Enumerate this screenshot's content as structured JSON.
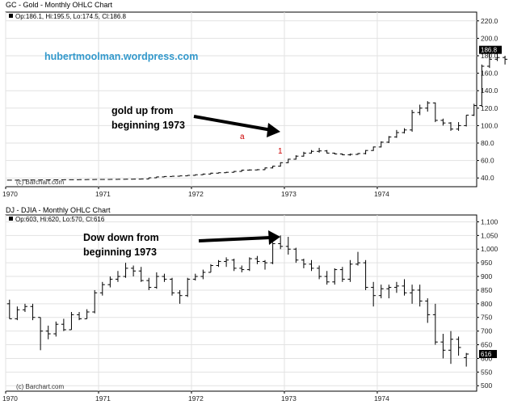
{
  "colors": {
    "bar": "#000000",
    "grid": "#e2e2e2",
    "url": "#3399cc",
    "marker": "#cc0000",
    "last_box": "#000000"
  },
  "chart_data": [
    {
      "type": "ohlc",
      "title": "GC - Gold - Monthly OHLC Chart",
      "legend": "Op:186.1, Hi:195.5, Lo:174.5, Cl:186.8",
      "last_value_label": "186.8",
      "credit": "(c) Barchart.com",
      "watermark": "hubertmoolman.wordpress.com",
      "annotation": {
        "text_lines": [
          "gold up from",
          "beginning 1973"
        ]
      },
      "markers": [
        {
          "text": "a",
          "x": 1972.8
        },
        {
          "text": "1",
          "x": 1972.97
        }
      ],
      "ylim": [
        30,
        230
      ],
      "yticks": [
        "40.0",
        "60.0",
        "80.0",
        "100.0",
        "120.0",
        "140.0",
        "160.0",
        "180.0",
        "200.0",
        "220.0"
      ],
      "ytick_values": [
        40,
        60,
        80,
        100,
        120,
        140,
        160,
        180,
        200,
        220
      ],
      "xlim": [
        1970,
        1975.07
      ],
      "xticks": [
        "1970",
        "1971",
        "1972",
        "1973",
        "1974"
      ],
      "xtick_values": [
        1970,
        1971,
        1972,
        1973,
        1974
      ],
      "grid": true,
      "start": 1970,
      "bars": [
        [
          37.5,
          37.6,
          37.4,
          37.5
        ],
        [
          37.5,
          37.6,
          37.4,
          37.6
        ],
        [
          37.6,
          37.8,
          37.5,
          37.7
        ],
        [
          37.7,
          37.8,
          37.6,
          37.7
        ],
        [
          37.7,
          37.9,
          37.6,
          37.8
        ],
        [
          37.8,
          37.9,
          37.7,
          37.9
        ],
        [
          37.9,
          38.0,
          37.8,
          37.9
        ],
        [
          37.9,
          38.0,
          37.8,
          38.0
        ],
        [
          38.0,
          38.1,
          37.9,
          38.0
        ],
        [
          38.0,
          38.1,
          37.9,
          38.1
        ],
        [
          38.1,
          38.3,
          38.0,
          38.2
        ],
        [
          38.2,
          38.4,
          38.1,
          38.3
        ],
        [
          38.3,
          38.4,
          38.2,
          38.3
        ],
        [
          38.3,
          38.5,
          38.2,
          38.4
        ],
        [
          38.4,
          38.6,
          38.3,
          38.5
        ],
        [
          38.5,
          38.7,
          38.4,
          38.6
        ],
        [
          38.6,
          38.8,
          38.5,
          38.7
        ],
        [
          38.7,
          39.0,
          38.6,
          38.9
        ],
        [
          38.9,
          40.5,
          38.8,
          40.2
        ],
        [
          40.2,
          41.5,
          40.0,
          41.2
        ],
        [
          41.2,
          42.0,
          41.0,
          41.7
        ],
        [
          41.7,
          42.2,
          41.5,
          42.0
        ],
        [
          42.0,
          42.6,
          41.8,
          42.4
        ],
        [
          42.4,
          43.2,
          42.2,
          43.0
        ],
        [
          43.0,
          44.0,
          42.8,
          43.7
        ],
        [
          43.7,
          45.0,
          43.5,
          44.5
        ],
        [
          44.5,
          46.0,
          44.3,
          45.5
        ],
        [
          45.5,
          46.3,
          45.2,
          46.0
        ],
        [
          46.0,
          47.0,
          45.8,
          46.5
        ],
        [
          46.5,
          48.0,
          46.2,
          47.5
        ],
        [
          47.5,
          49.5,
          47.2,
          49.0
        ],
        [
          49.0,
          49.8,
          48.5,
          49.2
        ],
        [
          49.2,
          50.0,
          48.8,
          49.5
        ],
        [
          49.5,
          52.0,
          49.2,
          51.5
        ],
        [
          51.5,
          54.0,
          51.0,
          53.5
        ],
        [
          53.5,
          58.0,
          53.0,
          57.5
        ],
        [
          57.5,
          62.0,
          57.0,
          61.5
        ],
        [
          61.5,
          66.0,
          61.0,
          65.0
        ],
        [
          65.0,
          70.0,
          64.5,
          68.5
        ],
        [
          68.5,
          72.0,
          68.0,
          70.5
        ],
        [
          70.5,
          74.5,
          69.0,
          71.0
        ],
        [
          71.0,
          72.0,
          68.0,
          68.5
        ],
        [
          68.5,
          69.0,
          67.0,
          67.5
        ],
        [
          67.5,
          68.0,
          66.0,
          66.5
        ],
        [
          66.5,
          68.0,
          65.5,
          67.0
        ],
        [
          67.0,
          68.5,
          66.5,
          68.0
        ],
        [
          68.0,
          72.0,
          67.0,
          71.5
        ],
        [
          71.5,
          76.0,
          71.0,
          75.5
        ],
        [
          75.5,
          82.0,
          75.0,
          81.0
        ],
        [
          81.0,
          88.0,
          80.0,
          87.0
        ],
        [
          87.0,
          95.0,
          86.0,
          92.0
        ],
        [
          92.0,
          97.0,
          91.0,
          95.0
        ],
        [
          95.0,
          118.0,
          93.0,
          115.0
        ],
        [
          115.0,
          124.0,
          112.0,
          120.0
        ],
        [
          120.0,
          128.0,
          116.0,
          126.0
        ],
        [
          126.0,
          126.5,
          104.0,
          106.0
        ],
        [
          106.0,
          108.0,
          100.0,
          103.0
        ],
        [
          103.0,
          104.0,
          94.0,
          96.0
        ],
        [
          96.0,
          104.0,
          94.0,
          100.0
        ],
        [
          100.0,
          112.0,
          99.0,
          112.0
        ],
        [
          112.0,
          125.0,
          111.0,
          123.0
        ],
        [
          123.0,
          170.0,
          122.0,
          168.0
        ],
        [
          168.0,
          182.0,
          166.0,
          176.0
        ],
        [
          176.0,
          184.0,
          174.0,
          178.0
        ],
        [
          178.0,
          180.0,
          170.0,
          176.0
        ],
        [
          176.0,
          177.0,
          150.0,
          156.0
        ],
        [
          156.0,
          158.0,
          140.0,
          144.0
        ],
        [
          144.0,
          154.0,
          138.0,
          152.0
        ],
        [
          152.0,
          156.0,
          148.0,
          153.0
        ],
        [
          153.0,
          158.0,
          148.0,
          150.0
        ],
        [
          150.0,
          170.0,
          149.0,
          166.0
        ],
        [
          166.0,
          190.0,
          165.0,
          186.0
        ],
        [
          186.1,
          195.5,
          174.5,
          186.8
        ]
      ]
    },
    {
      "type": "ohlc",
      "title": "DJ - DJIA - Monthly OHLC Chart",
      "legend": "Op:603, Hi:620, Lo:570, Cl:616",
      "last_value_label": "616",
      "credit": "(c) Barchart.com",
      "annotation": {
        "text_lines": [
          "Dow down from",
          "beginning 1973"
        ]
      },
      "ylim": [
        480,
        1125
      ],
      "yticks": [
        "500",
        "550",
        "600",
        "650",
        "700",
        "750",
        "800",
        "850",
        "900",
        "950",
        "1,000",
        "1,050",
        "1,100"
      ],
      "ytick_values": [
        500,
        550,
        600,
        650,
        700,
        750,
        800,
        850,
        900,
        950,
        1000,
        1050,
        1100
      ],
      "xlim": [
        1970,
        1975.07
      ],
      "xticks": [
        "1970",
        "1971",
        "1972",
        "1973",
        "1974"
      ],
      "xtick_values": [
        1970,
        1971,
        1972,
        1973,
        1974
      ],
      "grid": true,
      "start": 1970,
      "bars": [
        [
          800,
          815,
          745,
          745
        ],
        [
          745,
          790,
          740,
          778
        ],
        [
          778,
          800,
          770,
          790
        ],
        [
          790,
          800,
          740,
          750
        ],
        [
          750,
          750,
          630,
          700
        ],
        [
          700,
          720,
          670,
          690
        ],
        [
          690,
          735,
          680,
          725
        ],
        [
          725,
          745,
          700,
          705
        ],
        [
          705,
          770,
          705,
          760
        ],
        [
          760,
          770,
          740,
          745
        ],
        [
          745,
          780,
          745,
          770
        ],
        [
          770,
          850,
          765,
          840
        ],
        [
          840,
          880,
          830,
          870
        ],
        [
          870,
          900,
          860,
          890
        ],
        [
          890,
          920,
          880,
          900
        ],
        [
          900,
          950,
          895,
          930
        ],
        [
          930,
          940,
          900,
          920
        ],
        [
          920,
          935,
          880,
          885
        ],
        [
          885,
          895,
          850,
          860
        ],
        [
          860,
          915,
          855,
          900
        ],
        [
          900,
          910,
          880,
          890
        ],
        [
          890,
          895,
          830,
          840
        ],
        [
          840,
          850,
          800,
          830
        ],
        [
          830,
          895,
          825,
          890
        ],
        [
          890,
          910,
          885,
          900
        ],
        [
          900,
          925,
          890,
          915
        ],
        [
          915,
          945,
          915,
          940
        ],
        [
          940,
          960,
          935,
          955
        ],
        [
          955,
          970,
          935,
          960
        ],
        [
          960,
          965,
          920,
          930
        ],
        [
          930,
          940,
          915,
          925
        ],
        [
          925,
          970,
          920,
          965
        ],
        [
          965,
          975,
          945,
          955
        ],
        [
          955,
          960,
          925,
          950
        ],
        [
          950,
          1025,
          945,
          1020
        ],
        [
          1020,
          1050,
          1000,
          1010
        ],
        [
          1010,
          1045,
          980,
          1000
        ],
        [
          1000,
          1005,
          950,
          960
        ],
        [
          960,
          965,
          930,
          945
        ],
        [
          945,
          960,
          920,
          930
        ],
        [
          930,
          940,
          890,
          900
        ],
        [
          900,
          920,
          870,
          880
        ],
        [
          880,
          930,
          870,
          925
        ],
        [
          925,
          935,
          880,
          890
        ],
        [
          890,
          960,
          880,
          945
        ],
        [
          945,
          990,
          940,
          950
        ],
        [
          950,
          960,
          850,
          860
        ],
        [
          860,
          880,
          790,
          830
        ],
        [
          830,
          870,
          820,
          855
        ],
        [
          855,
          870,
          820,
          860
        ],
        [
          860,
          880,
          840,
          865
        ],
        [
          865,
          890,
          830,
          840
        ],
        [
          840,
          870,
          800,
          850
        ],
        [
          850,
          870,
          790,
          810
        ],
        [
          810,
          820,
          730,
          760
        ],
        [
          760,
          800,
          650,
          660
        ],
        [
          660,
          690,
          600,
          630
        ],
        [
          630,
          700,
          580,
          670
        ],
        [
          670,
          680,
          610,
          640
        ],
        [
          603,
          620,
          570,
          616
        ]
      ]
    }
  ]
}
